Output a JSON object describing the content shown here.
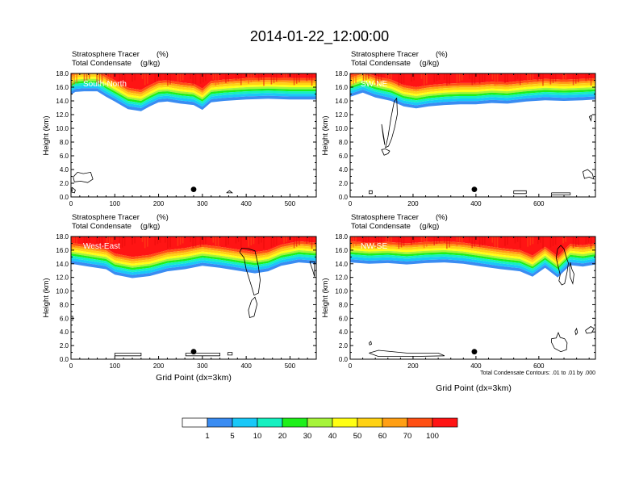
{
  "title": "2014-01-22_12:00:00",
  "colors": {
    "levels": [
      "#ffffff",
      "#3a8cf2",
      "#19c8f8",
      "#15f0c0",
      "#1ef01a",
      "#a6f43a",
      "#ffff14",
      "#ffd214",
      "#ff9f14",
      "#ff5014",
      "#ff1414"
    ],
    "contour": "#000000",
    "marker": "#000000"
  },
  "colorbar": {
    "labels": [
      "1",
      "5",
      "10",
      "20",
      "30",
      "40",
      "50",
      "60",
      "70",
      "100"
    ]
  },
  "footnote": "Total Condensate Contours: .01 to .01 by .000",
  "chart_data": [
    {
      "type": "heatmap",
      "panel_label": "South-North",
      "subtitle_field": "Stratosphere Tracer",
      "subtitle_field_unit": "(%)",
      "subtitle_contour": "Total Condensate",
      "subtitle_contour_unit": "(g/kg)",
      "ylabel": "Height (km)",
      "xlabel": "",
      "xlim": [
        0,
        560
      ],
      "ylim": [
        0,
        18
      ],
      "xticks": [
        "0",
        "100",
        "200",
        "300",
        "400",
        "500"
      ],
      "yticks": [
        "0.0",
        "2.0",
        "4.0",
        "6.0",
        "8.0",
        "10.0",
        "12.0",
        "14.0",
        "16.0",
        "18.0"
      ],
      "marker": {
        "x": 280,
        "y": 1.1
      },
      "tracer_base_km": [
        [
          0,
          14.9
        ],
        [
          10,
          15.3
        ],
        [
          30,
          15.4
        ],
        [
          60,
          15.4
        ],
        [
          80,
          14.6
        ],
        [
          100,
          13.9
        ],
        [
          130,
          12.8
        ],
        [
          160,
          12.5
        ],
        [
          180,
          13.2
        ],
        [
          200,
          13.8
        ],
        [
          220,
          13.9
        ],
        [
          250,
          13.6
        ],
        [
          280,
          13.4
        ],
        [
          300,
          12.7
        ],
        [
          320,
          13.8
        ],
        [
          350,
          14.0
        ],
        [
          400,
          14.2
        ],
        [
          450,
          14.3
        ],
        [
          500,
          14.2
        ],
        [
          560,
          14.2
        ]
      ]
    },
    {
      "type": "heatmap",
      "panel_label": "SW-NE",
      "subtitle_field": "Stratosphere Tracer",
      "subtitle_field_unit": "(%)",
      "subtitle_contour": "Total Condensate",
      "subtitle_contour_unit": "(g/kg)",
      "ylabel": "Height (km)",
      "xlabel": "",
      "xlim": [
        0,
        780
      ],
      "ylim": [
        0,
        18
      ],
      "xticks": [
        "0",
        "200",
        "400",
        "600"
      ],
      "yticks": [
        "0.0",
        "2.0",
        "4.0",
        "6.0",
        "8.0",
        "10.0",
        "12.0",
        "14.0",
        "16.0",
        "18.0"
      ],
      "marker": {
        "x": 395,
        "y": 1.1
      },
      "tracer_base_km": [
        [
          0,
          14.6
        ],
        [
          40,
          15.2
        ],
        [
          80,
          14.5
        ],
        [
          130,
          14.0
        ],
        [
          170,
          13.2
        ],
        [
          210,
          12.9
        ],
        [
          250,
          13.2
        ],
        [
          300,
          13.4
        ],
        [
          350,
          13.5
        ],
        [
          400,
          13.5
        ],
        [
          450,
          13.7
        ],
        [
          500,
          13.6
        ],
        [
          560,
          13.9
        ],
        [
          620,
          14.1
        ],
        [
          680,
          14.0
        ],
        [
          740,
          14.1
        ],
        [
          780,
          14.2
        ]
      ]
    },
    {
      "type": "heatmap",
      "panel_label": "West-East",
      "subtitle_field": "Stratosphere Tracer",
      "subtitle_field_unit": "(%)",
      "subtitle_contour": "Total Condensate",
      "subtitle_contour_unit": "(g/kg)",
      "ylabel": "Height (km)",
      "xlabel": "Grid Point (dx=3km)",
      "xlim": [
        0,
        560
      ],
      "ylim": [
        0,
        18
      ],
      "xticks": [
        "0",
        "100",
        "200",
        "300",
        "400",
        "500"
      ],
      "yticks": [
        "0.0",
        "2.0",
        "4.0",
        "6.0",
        "8.0",
        "10.0",
        "12.0",
        "14.0",
        "16.0",
        "18.0"
      ],
      "marker": {
        "x": 280,
        "y": 1.1
      },
      "tracer_base_km": [
        [
          0,
          14.0
        ],
        [
          40,
          13.6
        ],
        [
          80,
          13.2
        ],
        [
          100,
          12.4
        ],
        [
          140,
          11.9
        ],
        [
          180,
          12.2
        ],
        [
          220,
          12.9
        ],
        [
          260,
          13.2
        ],
        [
          300,
          13.7
        ],
        [
          340,
          13.4
        ],
        [
          380,
          13.0
        ],
        [
          420,
          12.6
        ],
        [
          450,
          12.9
        ],
        [
          480,
          13.7
        ],
        [
          520,
          14.2
        ],
        [
          560,
          14.0
        ]
      ]
    },
    {
      "type": "heatmap",
      "panel_label": "NW-SE",
      "subtitle_field": "Stratosphere Tracer",
      "subtitle_field_unit": "(%)",
      "subtitle_contour": "Total Condensate",
      "subtitle_contour_unit": "(g/kg)",
      "ylabel": "Height (km)",
      "xlabel": "Grid Point (dx=3km)",
      "xlim": [
        0,
        780
      ],
      "ylim": [
        0,
        18
      ],
      "xticks": [
        "0",
        "200",
        "400",
        "600"
      ],
      "yticks": [
        "0.0",
        "2.0",
        "4.0",
        "6.0",
        "8.0",
        "10.0",
        "12.0",
        "14.0",
        "16.0",
        "18.0"
      ],
      "marker": {
        "x": 395,
        "y": 1.1
      },
      "tracer_base_km": [
        [
          0,
          14.2
        ],
        [
          60,
          14.0
        ],
        [
          120,
          14.1
        ],
        [
          180,
          13.9
        ],
        [
          240,
          14.1
        ],
        [
          300,
          14.2
        ],
        [
          360,
          14.0
        ],
        [
          420,
          13.6
        ],
        [
          480,
          13.2
        ],
        [
          540,
          12.9
        ],
        [
          580,
          12.1
        ],
        [
          620,
          13.4
        ],
        [
          660,
          12.0
        ],
        [
          700,
          13.8
        ],
        [
          740,
          13.6
        ],
        [
          780,
          13.9
        ]
      ]
    }
  ]
}
